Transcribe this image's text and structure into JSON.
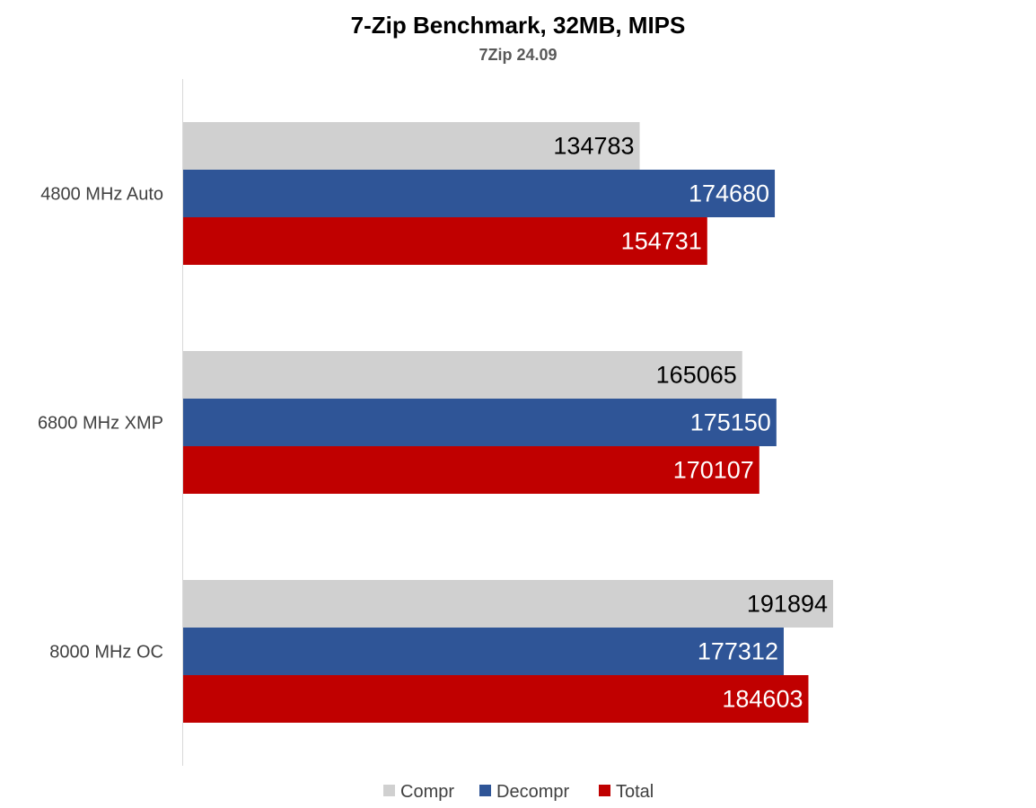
{
  "chart_data": {
    "type": "bar",
    "orientation": "horizontal",
    "title": "7-Zip Benchmark, 32MB, MIPS",
    "subtitle": "7Zip 24.09",
    "categories": [
      "4800 MHz Auto",
      "6800 MHz XMP",
      "8000 MHz OC"
    ],
    "series": [
      {
        "name": "Compr",
        "color": "#d0d0d0",
        "label_color": "#000000",
        "values": [
          134783,
          165065,
          191894
        ]
      },
      {
        "name": "Decompr",
        "color": "#2f5597",
        "label_color": "#ffffff",
        "values": [
          174680,
          175150,
          177312
        ]
      },
      {
        "name": "Total",
        "color": "#c00000",
        "label_color": "#ffffff",
        "values": [
          154731,
          170107,
          184603
        ]
      }
    ],
    "xlim": [
      0,
      200000
    ],
    "grid": false,
    "data_labels": true,
    "legend_position": "bottom"
  }
}
